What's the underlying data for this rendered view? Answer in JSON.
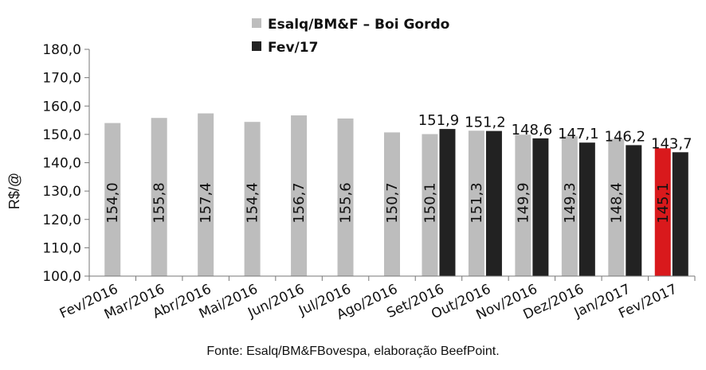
{
  "chart_data": {
    "type": "bar",
    "categories": [
      "Fev/2016",
      "Mar/2016",
      "Abr/2016",
      "Mai/2016",
      "Jun/2016",
      "Jul/2016",
      "Ago/2016",
      "Set/2016",
      "Out/2016",
      "Nov/2016",
      "Dez/2016",
      "Jan/2017",
      "Fev/2017"
    ],
    "series": [
      {
        "name": "Esalq/BM&F – Boi Gordo",
        "values": [
          154.0,
          155.8,
          157.4,
          154.4,
          156.7,
          155.6,
          150.7,
          150.1,
          151.3,
          149.9,
          149.3,
          148.4,
          145.1
        ],
        "labels": [
          "154,0",
          "155,8",
          "157,4",
          "154,4",
          "156,7",
          "155,6",
          "150,7",
          "150,1",
          "151,3",
          "149,9",
          "149,3",
          "148,4",
          "145,1"
        ],
        "color": "#bdbdbd",
        "highlight_color": "#d9191c",
        "highlight_index": 12
      },
      {
        "name": "Fev/17",
        "values": [
          null,
          null,
          null,
          null,
          null,
          null,
          null,
          151.9,
          151.2,
          148.6,
          147.1,
          146.2,
          143.7
        ],
        "labels": [
          "",
          "",
          "",
          "",
          "",
          "",
          "",
          "151,9",
          "151,2",
          "148,6",
          "147,1",
          "146,2",
          "143,7"
        ],
        "color": "#222222"
      }
    ],
    "ylabel": "R$/@",
    "ylim": [
      100,
      180
    ],
    "yticks": [
      "100,0",
      "110,0",
      "120,0",
      "130,0",
      "140,0",
      "150,0",
      "160,0",
      "170,0",
      "180,0"
    ],
    "grid": false,
    "legend": "top"
  },
  "source_note": "Fonte: Esalq/BM&FBovespa, elaboração BeefPoint."
}
